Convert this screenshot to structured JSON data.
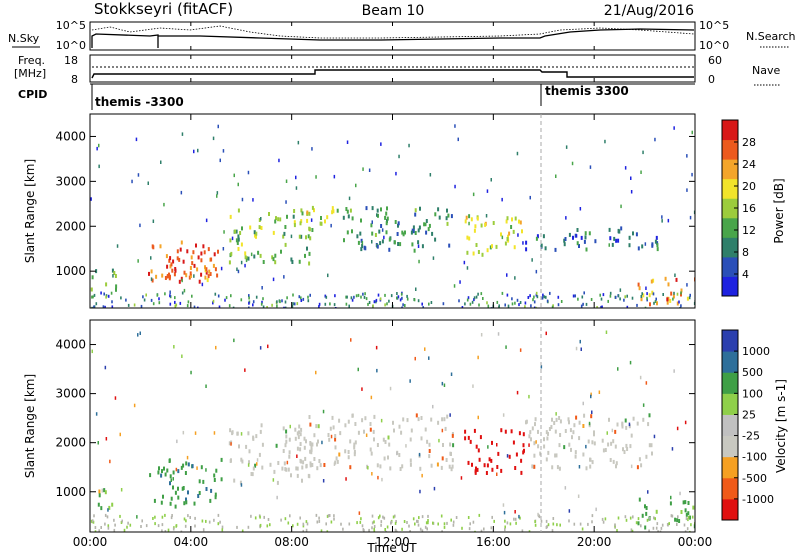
{
  "header": {
    "title": "Stokkseyri (fitACF)",
    "beam": "Beam 10",
    "date": "21/Aug/2016"
  },
  "panel_labels": {
    "nsky": "N.Sky",
    "nsearch": "N.Search",
    "freq_line1": "Freq.",
    "freq_line2": "[MHz]",
    "nave": "Nave",
    "cpid": "CPID"
  },
  "noise_axis": {
    "left_top": "10^5",
    "left_bottom": "10^0",
    "right_top": "10^5",
    "right_bottom": "10^0"
  },
  "freq_axis": {
    "left_top": "18",
    "left_bottom": "8",
    "right_top": "60",
    "right_bottom": "0"
  },
  "cpid_segments": [
    {
      "label": "themis -3300",
      "start_hour": 0
    },
    {
      "label": "themis 3300",
      "start_hour": 18
    }
  ],
  "colors": {
    "power": [
      "#1e22e0",
      "#2a4fb8",
      "#2f7f6a",
      "#49a54a",
      "#9ccc3c",
      "#f2e42a",
      "#f4a52a",
      "#ec5a1e",
      "#d81818"
    ],
    "velocity": [
      "#e01010",
      "#f05a18",
      "#f5a022",
      "#c8c8c0",
      "#c0c0c0",
      "#8fcf4a",
      "#3f9f46",
      "#2e6f9a",
      "#2b3fae"
    ],
    "ground": "#b4b4ac"
  },
  "chart_data": [
    {
      "type": "heatmap",
      "panel": "power",
      "ylabel": "Slant Range [km]",
      "yticks": [
        "1000",
        "2000",
        "3000",
        "4000"
      ],
      "ylim": [
        180,
        4500
      ],
      "xlim": [
        0,
        24
      ],
      "colorbar": {
        "label": "Power [dB]",
        "ticks": [
          "4",
          "8",
          "12",
          "16",
          "20",
          "24",
          "28"
        ],
        "range": [
          0,
          32
        ]
      },
      "regions": [
        {
          "t0": 0.0,
          "t1": 1.0,
          "r0": 600,
          "r1": 1100,
          "value": 14
        },
        {
          "t0": 2.3,
          "t1": 5.2,
          "r0": 700,
          "r1": 1700,
          "value": 26
        },
        {
          "t0": 3.0,
          "t1": 4.6,
          "r0": 900,
          "r1": 1500,
          "value": 30
        },
        {
          "t0": 5.5,
          "t1": 8.8,
          "r0": 1200,
          "r1": 2400,
          "value": 14
        },
        {
          "t0": 8.2,
          "t1": 10.5,
          "r0": 2100,
          "r1": 2500,
          "value": 17
        },
        {
          "t0": 10.0,
          "t1": 14.5,
          "r0": 1500,
          "r1": 2500,
          "value": 10
        },
        {
          "t0": 14.8,
          "t1": 17.2,
          "r0": 1400,
          "r1": 2300,
          "value": 18
        },
        {
          "t0": 17.2,
          "t1": 22.5,
          "r0": 1500,
          "r1": 2000,
          "value": 7
        },
        {
          "t0": 21.7,
          "t1": 24.0,
          "r0": 300,
          "r1": 900,
          "value": 24
        }
      ]
    },
    {
      "type": "heatmap",
      "panel": "velocity",
      "xlabel": "Time UT",
      "ylabel": "Slant Range [km]",
      "yticks": [
        "1000",
        "2000",
        "3000",
        "4000"
      ],
      "ylim": [
        180,
        4500
      ],
      "xlim": [
        0,
        24
      ],
      "xticks": [
        "00:00",
        "04:00",
        "08:00",
        "12:00",
        "16:00",
        "20:00",
        "00:00"
      ],
      "colorbar": {
        "label": "Velocity [m s-1]",
        "ticks": [
          "1000",
          "500",
          "100",
          "25",
          "-25",
          "-100",
          "-500",
          "-1000"
        ]
      },
      "regions": [
        {
          "t0": 0.0,
          "t1": 1.0,
          "r0": 600,
          "r1": 1100,
          "value": 150
        },
        {
          "t0": 2.3,
          "t1": 5.2,
          "r0": 700,
          "r1": 1700,
          "value": 400
        },
        {
          "t0": 5.5,
          "t1": 8.8,
          "r0": 1200,
          "r1": 2400,
          "value": 0
        },
        {
          "t0": 8.2,
          "t1": 14.5,
          "r0": 1500,
          "r1": 2600,
          "value": 0
        },
        {
          "t0": 14.8,
          "t1": 17.2,
          "r0": 1400,
          "r1": 2300,
          "value": -800
        },
        {
          "t0": 17.2,
          "t1": 22.5,
          "r0": 1500,
          "r1": 2600,
          "value": 0
        },
        {
          "t0": 21.7,
          "t1": 24.0,
          "r0": 300,
          "r1": 900,
          "value": 300
        }
      ]
    }
  ]
}
